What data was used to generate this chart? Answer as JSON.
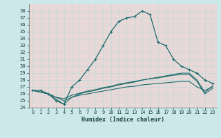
{
  "xlabel": "Humidex (Indice chaleur)",
  "background_color": "#cde8e8",
  "plot_bg_color": "#e8d8d8",
  "grid_color": "#c8d8d8",
  "line_color": "#1a6b6b",
  "xlim": [
    -0.5,
    23.5
  ],
  "ylim": [
    24,
    39
  ],
  "yticks": [
    24,
    25,
    26,
    27,
    28,
    29,
    30,
    31,
    32,
    33,
    34,
    35,
    36,
    37,
    38
  ],
  "xticks": [
    0,
    1,
    2,
    3,
    4,
    5,
    6,
    7,
    8,
    9,
    10,
    11,
    12,
    13,
    14,
    15,
    16,
    17,
    18,
    19,
    20,
    21,
    22,
    23
  ],
  "curve1_x": [
    0,
    1,
    2,
    3,
    4,
    5,
    6,
    7,
    8,
    9,
    10,
    11,
    12,
    13,
    14,
    15,
    16,
    17,
    18,
    19,
    20,
    21,
    22,
    23
  ],
  "curve1_y": [
    26.5,
    26.5,
    26.0,
    25.0,
    24.5,
    27.0,
    28.0,
    29.5,
    31.0,
    33.0,
    35.0,
    36.5,
    37.0,
    37.2,
    38.0,
    37.5,
    33.5,
    33.0,
    31.0,
    30.0,
    29.5,
    29.0,
    28.0,
    27.5
  ],
  "curve2_x": [
    0,
    2,
    3,
    4,
    5,
    6,
    7,
    8,
    9,
    10,
    11,
    12,
    13,
    14,
    15,
    16,
    17,
    18,
    19,
    20,
    21,
    22,
    23
  ],
  "curve2_y": [
    26.5,
    26.0,
    25.2,
    24.5,
    25.5,
    26.0,
    26.3,
    26.5,
    26.8,
    27.0,
    27.3,
    27.5,
    27.7,
    28.0,
    28.2,
    28.4,
    28.6,
    28.8,
    29.0,
    29.0,
    28.0,
    26.2,
    27.2
  ],
  "curve3_x": [
    0,
    2,
    3,
    4,
    5,
    6,
    7,
    8,
    9,
    10,
    11,
    12,
    13,
    14,
    15,
    16,
    17,
    18,
    19,
    20,
    21,
    22,
    23
  ],
  "curve3_y": [
    26.5,
    26.0,
    25.5,
    25.3,
    25.8,
    26.1,
    26.4,
    26.6,
    26.9,
    27.1,
    27.4,
    27.6,
    27.8,
    28.0,
    28.2,
    28.3,
    28.5,
    28.7,
    28.8,
    28.8,
    27.8,
    26.0,
    26.8
  ],
  "curve4_x": [
    0,
    2,
    3,
    4,
    5,
    6,
    7,
    8,
    9,
    10,
    11,
    12,
    13,
    14,
    15,
    16,
    17,
    18,
    19,
    20,
    21,
    22,
    23
  ],
  "curve4_y": [
    26.5,
    26.0,
    25.5,
    25.0,
    25.5,
    25.8,
    26.0,
    26.2,
    26.4,
    26.6,
    26.8,
    27.0,
    27.1,
    27.3,
    27.4,
    27.5,
    27.6,
    27.7,
    27.8,
    27.8,
    27.0,
    26.5,
    27.0
  ]
}
